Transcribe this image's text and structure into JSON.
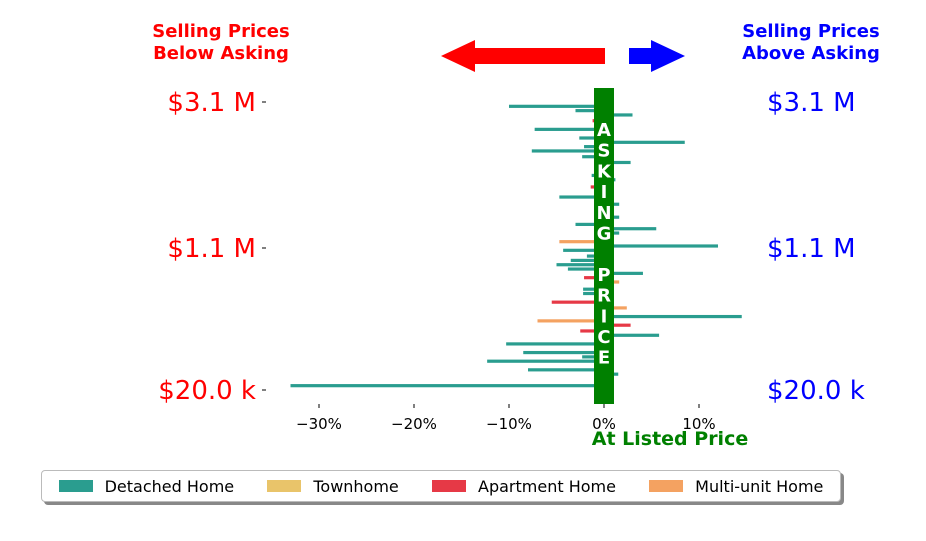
{
  "header": {
    "left": [
      "Selling Prices",
      "Below Asking"
    ],
    "right": [
      "Selling Prices",
      "Above Asking"
    ],
    "left_color": "#ff0000",
    "right_color": "#0000ff"
  },
  "asking_bar": {
    "letters": [
      "A",
      "S",
      "K",
      "I",
      "N",
      "G",
      "",
      "P",
      "R",
      "I",
      "C",
      "E"
    ],
    "color": "#008000"
  },
  "at_listed_label": "At Listed Price",
  "colors": {
    "Detached Home": "#2a9d8f",
    "Townhome": "#e9c46a",
    "Apartment Home": "#e63946",
    "Multi-unit Home": "#f4a261"
  },
  "chart_data": {
    "type": "bar",
    "orientation": "horizontal",
    "xlabel": "At Listed Price",
    "xlim": [
      -35,
      15
    ],
    "xticks": [
      -30,
      -20,
      -10,
      0,
      10
    ],
    "xtick_labels": [
      "−30%",
      "−20%",
      "−10%",
      "0%",
      "10%"
    ],
    "ytick_labels_left": [
      "$3.1 M",
      "$1.1 M",
      "$20.0 k"
    ],
    "ytick_labels_right": [
      "$3.1 M",
      "$1.1 M",
      "$20.0 k"
    ],
    "ytick_fraction": [
      1.0,
      0.5,
      0.0
    ],
    "legend": [
      "Detached Home",
      "Townhome",
      "Apartment Home",
      "Multi-unit Home"
    ],
    "legend_position": "bottom",
    "bars": [
      {
        "pos": 0.985,
        "value": -10.0,
        "type": "Detached Home"
      },
      {
        "pos": 0.97,
        "value": -3.0,
        "type": "Detached Home"
      },
      {
        "pos": 0.955,
        "value": 3.0,
        "type": "Detached Home"
      },
      {
        "pos": 0.935,
        "value": -1.2,
        "type": "Apartment Home"
      },
      {
        "pos": 0.905,
        "value": -7.3,
        "type": "Detached Home"
      },
      {
        "pos": 0.875,
        "value": -2.6,
        "type": "Detached Home"
      },
      {
        "pos": 0.86,
        "value": 8.5,
        "type": "Detached Home"
      },
      {
        "pos": 0.845,
        "value": -2.1,
        "type": "Detached Home"
      },
      {
        "pos": 0.83,
        "value": -7.6,
        "type": "Detached Home"
      },
      {
        "pos": 0.81,
        "value": -2.3,
        "type": "Detached Home"
      },
      {
        "pos": 0.79,
        "value": 2.8,
        "type": "Detached Home"
      },
      {
        "pos": 0.745,
        "value": -1.3,
        "type": "Detached Home"
      },
      {
        "pos": 0.73,
        "value": 1.2,
        "type": "Detached Home"
      },
      {
        "pos": 0.705,
        "value": -1.4,
        "type": "Apartment Home"
      },
      {
        "pos": 0.67,
        "value": -4.7,
        "type": "Detached Home"
      },
      {
        "pos": 0.645,
        "value": 1.6,
        "type": "Detached Home"
      },
      {
        "pos": 0.6,
        "value": 1.6,
        "type": "Detached Home"
      },
      {
        "pos": 0.575,
        "value": -3.0,
        "type": "Detached Home"
      },
      {
        "pos": 0.56,
        "value": 5.5,
        "type": "Detached Home"
      },
      {
        "pos": 0.545,
        "value": 1.6,
        "type": "Detached Home"
      },
      {
        "pos": 0.515,
        "value": -4.7,
        "type": "Multi-unit Home"
      },
      {
        "pos": 0.5,
        "value": 12.0,
        "type": "Detached Home"
      },
      {
        "pos": 0.485,
        "value": -4.3,
        "type": "Detached Home"
      },
      {
        "pos": 0.465,
        "value": -1.8,
        "type": "Detached Home"
      },
      {
        "pos": 0.45,
        "value": -3.5,
        "type": "Detached Home"
      },
      {
        "pos": 0.435,
        "value": -5.0,
        "type": "Detached Home"
      },
      {
        "pos": 0.42,
        "value": -3.8,
        "type": "Detached Home"
      },
      {
        "pos": 0.405,
        "value": 4.1,
        "type": "Detached Home"
      },
      {
        "pos": 0.39,
        "value": -2.1,
        "type": "Apartment Home"
      },
      {
        "pos": 0.375,
        "value": 1.6,
        "type": "Multi-unit Home"
      },
      {
        "pos": 0.35,
        "value": -2.2,
        "type": "Detached Home"
      },
      {
        "pos": 0.335,
        "value": -2.2,
        "type": "Detached Home"
      },
      {
        "pos": 0.305,
        "value": -5.5,
        "type": "Apartment Home"
      },
      {
        "pos": 0.285,
        "value": 2.4,
        "type": "Multi-unit Home"
      },
      {
        "pos": 0.255,
        "value": 14.5,
        "type": "Detached Home"
      },
      {
        "pos": 0.24,
        "value": -7.0,
        "type": "Multi-unit Home"
      },
      {
        "pos": 0.225,
        "value": 2.8,
        "type": "Apartment Home"
      },
      {
        "pos": 0.205,
        "value": -2.5,
        "type": "Apartment Home"
      },
      {
        "pos": 0.19,
        "value": 5.8,
        "type": "Detached Home"
      },
      {
        "pos": 0.16,
        "value": -10.3,
        "type": "Detached Home"
      },
      {
        "pos": 0.13,
        "value": -8.5,
        "type": "Detached Home"
      },
      {
        "pos": 0.115,
        "value": -2.3,
        "type": "Detached Home"
      },
      {
        "pos": 0.1,
        "value": -12.3,
        "type": "Detached Home"
      },
      {
        "pos": 0.07,
        "value": -8.0,
        "type": "Detached Home"
      },
      {
        "pos": 0.055,
        "value": 1.5,
        "type": "Detached Home"
      },
      {
        "pos": 0.015,
        "value": -33.0,
        "type": "Detached Home"
      }
    ]
  }
}
